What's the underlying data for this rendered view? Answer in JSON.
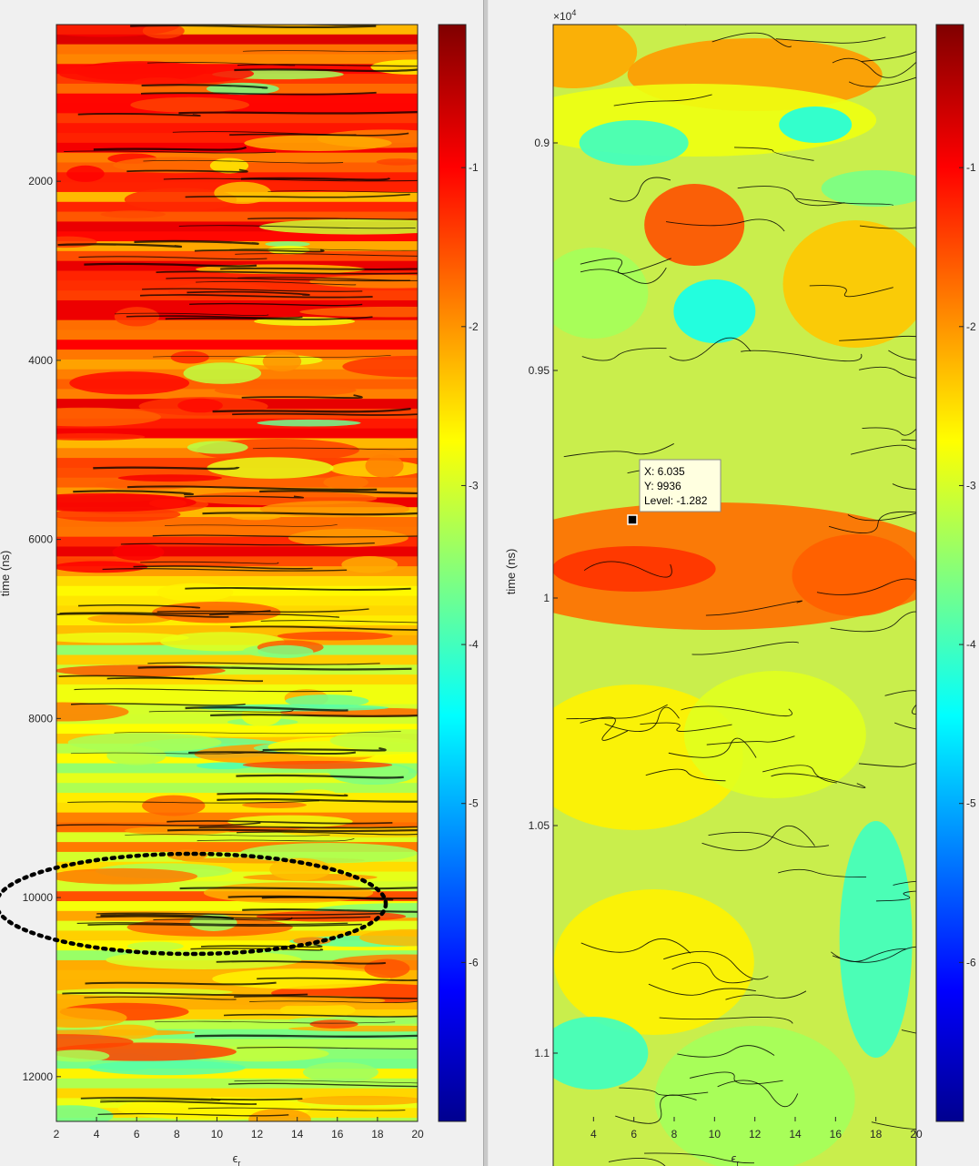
{
  "chart_data": [
    {
      "type": "heatmap",
      "subtype": "filled-contour",
      "title": "",
      "xlabel": "ϵ_r",
      "ylabel": "time (ns)",
      "xlim": [
        2,
        20
      ],
      "ylim": [
        250,
        12500
      ],
      "y_reversed": true,
      "xticks": [
        2,
        4,
        6,
        8,
        10,
        12,
        14,
        16,
        18,
        20
      ],
      "yticks": [
        2000,
        4000,
        6000,
        8000,
        10000,
        12000
      ],
      "colormap": "jet",
      "colorbar": {
        "range": [
          -7,
          -0.1
        ],
        "ticks": [
          -1,
          -2,
          -3,
          -4,
          -5,
          -6
        ]
      },
      "annotation": {
        "shape": "dotted-ellipse",
        "center_y": 10000,
        "description_x_range": [
          0,
          18.5
        ]
      }
    },
    {
      "type": "heatmap",
      "subtype": "filled-contour",
      "title": "",
      "xlabel": "ϵ_r",
      "ylabel": "time (ns)",
      "xlim": [
        2,
        20
      ],
      "ylim": [
        8740,
        11250
      ],
      "y_reversed": true,
      "y_exponent_label": "×10",
      "y_exponent_power": "4",
      "xticks": [
        4,
        6,
        8,
        10,
        12,
        14,
        16,
        18,
        20
      ],
      "yticks": [
        0.9,
        0.95,
        1,
        1.05,
        1.1
      ],
      "ytick_labels": [
        "0.9",
        "0.95",
        "1",
        "1.05",
        "1.1"
      ],
      "colormap": "jet",
      "colorbar": {
        "range": [
          -7,
          -0.1
        ],
        "ticks": [
          -1,
          -2,
          -3,
          -4,
          -5,
          -6
        ]
      },
      "datatip": {
        "x": 6.035,
        "y": 9936,
        "level": -1.282,
        "lines": [
          "X: 6.035",
          "Y: 9936",
          "Level: -1.282"
        ]
      }
    }
  ]
}
